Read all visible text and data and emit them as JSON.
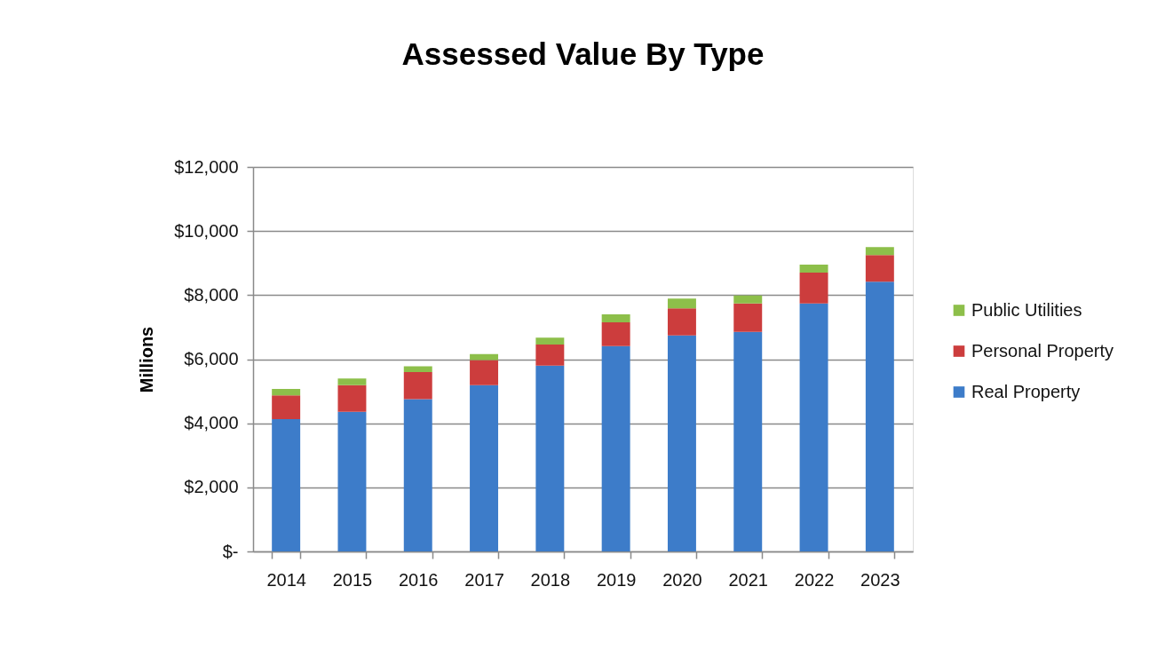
{
  "chart_data": {
    "type": "bar",
    "title": "Assessed Value By Type",
    "ylabel": "Millions",
    "categories": [
      "2014",
      "2015",
      "2016",
      "2017",
      "2018",
      "2019",
      "2020",
      "2021",
      "2022",
      "2023"
    ],
    "stacked": true,
    "series": [
      {
        "name": "Real Property",
        "color": "#3d7cc9",
        "values": [
          4130,
          4360,
          4750,
          5190,
          5800,
          6410,
          6740,
          6850,
          7740,
          8420
        ]
      },
      {
        "name": "Personal Property",
        "color": "#cc3d3d",
        "values": [
          740,
          830,
          850,
          780,
          660,
          740,
          850,
          890,
          960,
          830
        ]
      },
      {
        "name": "Public Utilities",
        "color": "#8dbf4a",
        "values": [
          200,
          210,
          180,
          190,
          210,
          250,
          300,
          250,
          250,
          250
        ]
      }
    ],
    "ylim": [
      0,
      12000
    ],
    "yticks": [
      {
        "value": 0,
        "label": "$-"
      },
      {
        "value": 2000,
        "label": "$2,000"
      },
      {
        "value": 4000,
        "label": "$4,000"
      },
      {
        "value": 6000,
        "label": "$6,000"
      },
      {
        "value": 8000,
        "label": "$8,000"
      },
      {
        "value": 10000,
        "label": "$10,000"
      },
      {
        "value": 12000,
        "label": "$12,000"
      }
    ],
    "grid": "y",
    "legend": "right"
  }
}
